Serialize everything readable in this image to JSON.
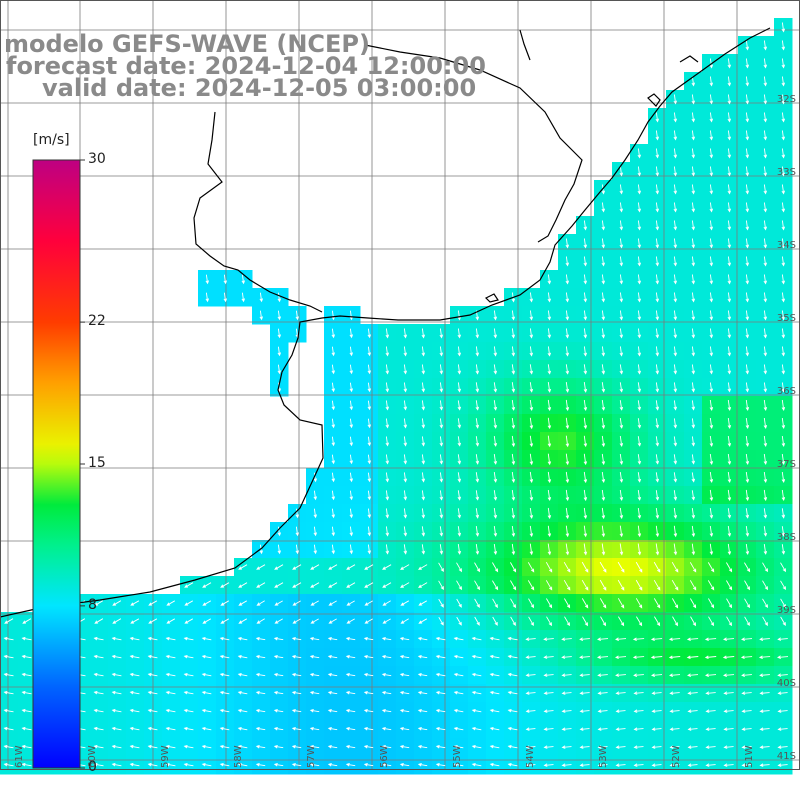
{
  "title": {
    "line1": "modelo GEFS-WAVE (NCEP)",
    "line2": "forecast date: 2024-12-04 12:00:00",
    "line3": "valid date: 2024-12-05 03:00:00"
  },
  "colorbar": {
    "unit": "[m/s]",
    "min": 0,
    "max": 30,
    "ticks": [
      "30",
      "22",
      "15",
      "8",
      "0"
    ],
    "tick_values": [
      30,
      22,
      15,
      8,
      0
    ],
    "colors": [
      "#0000ff",
      "#00aaff",
      "#00ffff",
      "#00ff80",
      "#00ff00",
      "#ffff00",
      "#ff8000",
      "#ff0000",
      "#ff0060",
      "#c00080"
    ]
  },
  "lat_labels": [
    "32S",
    "33S",
    "34S",
    "35S",
    "36S",
    "37S",
    "38S",
    "39S",
    "40S",
    "41S"
  ],
  "lon_labels": [
    "61W",
    "60W",
    "59W",
    "58W",
    "57W",
    "56W",
    "55W",
    "54W",
    "53W",
    "52W",
    "51W"
  ],
  "colors": {
    "land": "#ffffff",
    "coast": "#000000",
    "grid": "#7a7a7a",
    "arrow": "#ffffff",
    "title": "#8a8a8a"
  }
}
